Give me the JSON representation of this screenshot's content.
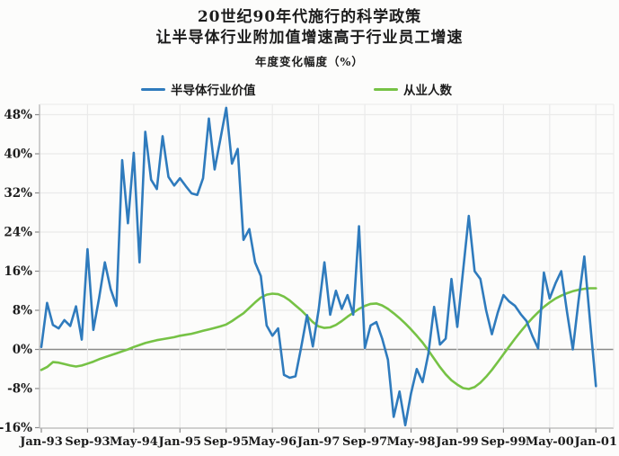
{
  "title": {
    "line1": "20世纪90年代施行的科学政策",
    "line2": "让半导体行业附加值增速高于行业员工增速",
    "subtitle": "年度变化幅度（%）"
  },
  "legend": [
    {
      "label": "半导体行业价值",
      "color": "#2f7bbd"
    },
    {
      "label": "从业人数",
      "color": "#76c245"
    }
  ],
  "colors": {
    "series_blue": "#2f7bbd",
    "series_green": "#76c245",
    "grid": "#eaeaea",
    "zero_line": "#8a8a8a",
    "axis_border": "#b5b5b5",
    "tick": "#8a8a8a",
    "text": "#1c1c1c",
    "background": "#fcfcfb"
  },
  "chart_data": {
    "type": "line",
    "title": "20世纪90年代施行的科学政策 让半导体行业附加值增速高于行业员工增速",
    "ylabel": "年度变化幅度（%）",
    "x_tick_labels": [
      "Jan-93",
      "Sep-93",
      "May-94",
      "Jan-95",
      "Sep-95",
      "May-96",
      "Jan-97",
      "Sep-97",
      "May-98",
      "Jan-99",
      "Sep-99",
      "May-00",
      "Jan-01"
    ],
    "x_tick_months": [
      0,
      8,
      16,
      24,
      32,
      40,
      48,
      56,
      64,
      72,
      80,
      88,
      96
    ],
    "y_tick_labels": [
      "48%",
      "40%",
      "32%",
      "24%",
      "16%",
      "8%",
      "0%",
      "-8%",
      "-16%"
    ],
    "y_tick_values": [
      48,
      40,
      32,
      24,
      16,
      8,
      0,
      -8,
      -16
    ],
    "ylim": [
      -16.5,
      50
    ],
    "x_range_months": [
      "Jan-93",
      "Jan-01"
    ],
    "grid": true,
    "legend_position": "top",
    "series": [
      {
        "name": "半导体行业价值",
        "color": "#2f7bbd",
        "values": [
          0.5,
          9.5,
          5.0,
          4.3,
          6.0,
          4.8,
          8.8,
          2.0,
          20.5,
          4.0,
          10.5,
          17.8,
          12.3,
          8.9,
          38.7,
          25.8,
          40.2,
          17.8,
          44.5,
          34.7,
          32.8,
          43.6,
          35.3,
          33.5,
          35.0,
          33.4,
          31.9,
          31.6,
          35.0,
          47.2,
          36.8,
          43.0,
          49.4,
          38.0,
          41.0,
          22.4,
          24.6,
          17.8,
          15.0,
          4.9,
          2.8,
          4.3,
          -5.2,
          -5.8,
          -5.5,
          0.5,
          7.0,
          0.6,
          8.0,
          17.8,
          7.1,
          12.0,
          8.3,
          11.1,
          7.1,
          25.2,
          0.3,
          4.9,
          5.6,
          2.2,
          -2.1,
          -13.8,
          -8.6,
          -15.5,
          -9.0,
          -4.0,
          -6.7,
          -0.9,
          8.7,
          1.0,
          2.2,
          14.4,
          4.6,
          16.0,
          27.3,
          16.0,
          14.4,
          8.0,
          3.1,
          7.5,
          11.1,
          9.8,
          8.9,
          7.2,
          5.8,
          2.8,
          0.2,
          15.7,
          10.4,
          13.5,
          16.0,
          7.7,
          0.0,
          10.0,
          19.0,
          5.5,
          -7.5
        ]
      },
      {
        "name": "从业人数",
        "color": "#76c245",
        "values": [
          -4.2,
          -3.6,
          -2.6,
          -2.7,
          -3.0,
          -3.3,
          -3.5,
          -3.3,
          -2.9,
          -2.5,
          -2.0,
          -1.6,
          -1.2,
          -0.8,
          -0.4,
          0.0,
          0.5,
          0.9,
          1.3,
          1.6,
          1.9,
          2.1,
          2.3,
          2.5,
          2.8,
          3.0,
          3.2,
          3.5,
          3.8,
          4.1,
          4.4,
          4.7,
          5.1,
          5.8,
          6.6,
          7.4,
          8.5,
          9.6,
          10.6,
          11.2,
          11.4,
          11.3,
          10.8,
          10.0,
          9.0,
          8.0,
          6.8,
          5.6,
          4.7,
          4.4,
          4.5,
          5.0,
          5.8,
          6.7,
          7.5,
          8.3,
          8.9,
          9.3,
          9.4,
          9.0,
          8.3,
          7.4,
          6.4,
          5.3,
          4.1,
          2.8,
          1.4,
          -0.2,
          -1.9,
          -3.6,
          -5.1,
          -6.3,
          -7.2,
          -7.9,
          -8.1,
          -7.7,
          -6.8,
          -5.6,
          -4.2,
          -2.6,
          -1.0,
          0.6,
          2.2,
          3.7,
          5.1,
          6.4,
          7.6,
          8.7,
          9.6,
          10.4,
          11.0,
          11.5,
          11.9,
          12.2,
          12.4,
          12.5,
          12.5
        ]
      }
    ]
  }
}
